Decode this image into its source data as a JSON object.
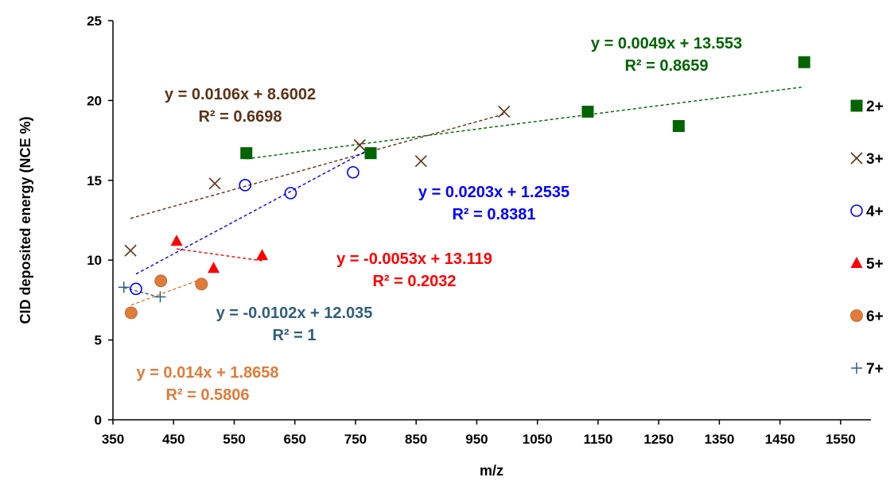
{
  "chart_data": {
    "type": "scatter",
    "title": "",
    "xlabel": "m/z",
    "ylabel": "CID deposited energy (NCE %)",
    "xlim": [
      350,
      1600
    ],
    "ylim": [
      0,
      25
    ],
    "x_ticks": [
      350,
      450,
      550,
      650,
      750,
      850,
      950,
      1050,
      1150,
      1250,
      1350,
      1450,
      1550
    ],
    "y_ticks": [
      0,
      5,
      10,
      15,
      20,
      25
    ],
    "grid": false,
    "legend_position": "right",
    "series": [
      {
        "name": "2+",
        "color": "#006400",
        "marker": "square",
        "points": [
          [
            570,
            16.7
          ],
          [
            775,
            16.7
          ],
          [
            1133,
            19.3
          ],
          [
            1283,
            18.4
          ],
          [
            1490,
            22.4
          ]
        ],
        "trendline": {
          "x_range": [
            570,
            1490
          ],
          "slope": 0.0049,
          "intercept": 13.553
        },
        "equation": "y = 0.0049x + 13.553",
        "r2": "R² = 0.8659"
      },
      {
        "name": "3+",
        "color": "#5C3317",
        "marker": "x",
        "points": [
          [
            379,
            10.6
          ],
          [
            518,
            14.8
          ],
          [
            757,
            17.2
          ],
          [
            858,
            16.2
          ],
          [
            995,
            19.3
          ]
        ],
        "trendline": {
          "x_range": [
            379,
            995
          ],
          "slope": 0.0106,
          "intercept": 8.6002
        },
        "equation": "y = 0.0106x + 8.6002",
        "r2": "R² = 0.6698"
      },
      {
        "name": "4+",
        "color": "#0000FF",
        "marker": "circle-open",
        "points": [
          [
            388,
            8.2
          ],
          [
            568,
            14.7
          ],
          [
            643,
            14.2
          ],
          [
            746,
            15.5
          ]
        ],
        "trendline": {
          "x_range": [
            388,
            766
          ],
          "slope": 0.0203,
          "intercept": 1.2535
        },
        "equation": "y = 0.0203x + 1.2535",
        "r2": "R² = 0.8381"
      },
      {
        "name": "5+",
        "color": "#FF0000",
        "marker": "triangle",
        "points": [
          [
            455,
            11.2
          ],
          [
            516,
            9.5
          ],
          [
            596,
            10.3
          ]
        ],
        "trendline": {
          "x_range": [
            455,
            596
          ],
          "slope": -0.0053,
          "intercept": 13.119
        },
        "equation": "y = -0.0053x + 13.119",
        "r2": "R² = 0.2032"
      },
      {
        "name": "6+",
        "color": "#E07B39",
        "marker": "circle",
        "points": [
          [
            380,
            6.7
          ],
          [
            429,
            8.7
          ],
          [
            496,
            8.5
          ]
        ],
        "trendline": {
          "x_range": [
            380,
            496
          ],
          "slope": 0.014,
          "intercept": 1.8658
        },
        "equation": "y = 0.014x + 1.8658",
        "r2": "R² = 0.5806"
      },
      {
        "name": "7+",
        "color": "#2F5F7A",
        "marker": "plus",
        "points": [
          [
            368,
            8.3
          ],
          [
            428,
            7.7
          ]
        ],
        "trendline": {
          "x_range": [
            368,
            428
          ],
          "slope": -0.0102,
          "intercept": 12.035
        },
        "equation": "y = -0.0102x + 12.035",
        "r2": "R² = 1"
      }
    ]
  }
}
